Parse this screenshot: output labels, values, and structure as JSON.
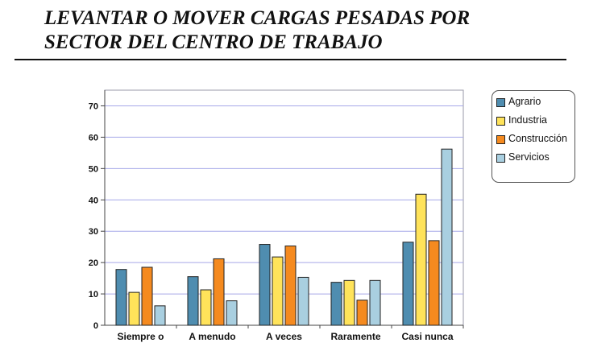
{
  "title": {
    "line1": "LEVANTAR O MOVER CARGAS PESADAS  POR",
    "line2": "SECTOR DEL CENTRO DE TRABAJO"
  },
  "chart_data": {
    "type": "bar",
    "categories": [
      "Siempre o",
      "A menudo",
      "A veces",
      "Raramente",
      "Casi nunca"
    ],
    "series": [
      {
        "name": "Agrario",
        "color": "#4f8db0",
        "values": [
          17.8,
          15.5,
          25.8,
          13.7,
          26.5
        ]
      },
      {
        "name": "Industria",
        "color": "#ffe35a",
        "values": [
          10.5,
          11.3,
          21.8,
          14.3,
          41.8
        ]
      },
      {
        "name": "Construcción",
        "color": "#f58a1f",
        "values": [
          18.5,
          21.2,
          25.3,
          8.0,
          27.0
        ]
      },
      {
        "name": "Servicios",
        "color": "#a9cfe0",
        "values": [
          6.2,
          7.8,
          15.3,
          14.3,
          56.2
        ]
      }
    ],
    "ylim": [
      0,
      75
    ],
    "yticks": [
      0,
      10,
      20,
      30,
      40,
      50,
      60,
      70
    ],
    "grid": true,
    "legend": "right"
  }
}
